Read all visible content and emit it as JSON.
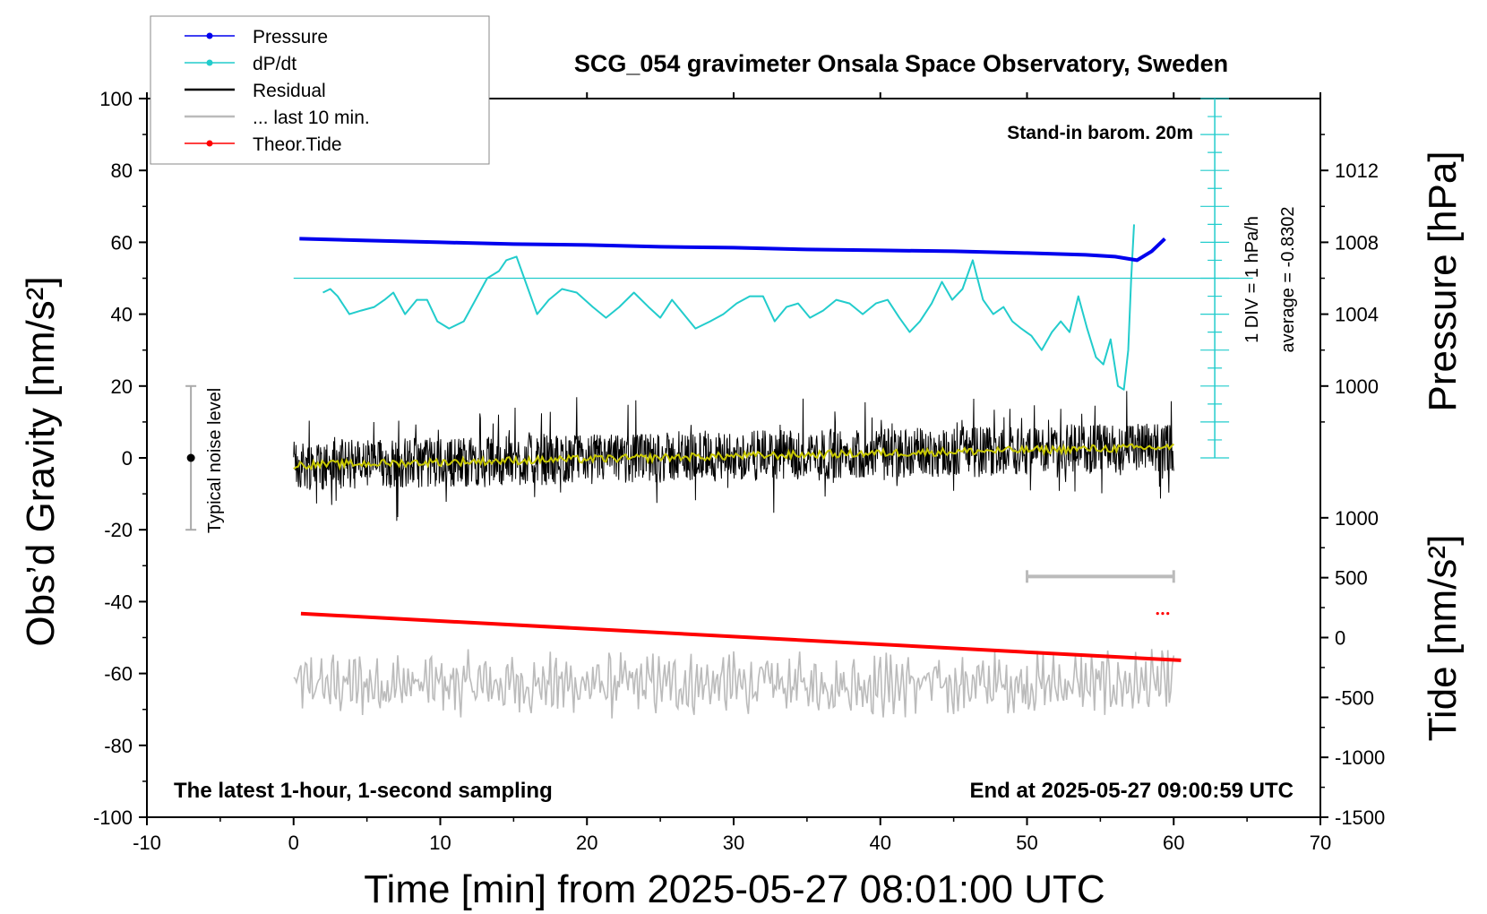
{
  "chart_data": {
    "type": "line",
    "title": "SCG_054 gravimeter Onsala Space Observatory, Sweden",
    "xlabel": "Time [min] from 2025-05-27 08:01:00 UTC",
    "ylabel_left": "Obs’d Gravity [nm/s²]",
    "ylabel_right_pressure": "Pressure [hPa]",
    "ylabel_right_tide": "Tide [nm/s²]",
    "xlim": [
      -10,
      70
    ],
    "ylim_left": [
      -100,
      100
    ],
    "x_ticks": [
      "-10",
      "0",
      "10",
      "20",
      "30",
      "40",
      "50",
      "60",
      "70"
    ],
    "y_left_ticks": [
      "100",
      "80",
      "60",
      "40",
      "20",
      "0",
      "-20",
      "-40",
      "-60",
      "-80",
      "-100"
    ],
    "pressure_ticks": [
      "1012",
      "1008",
      "1004",
      "1000"
    ],
    "tide_ticks": [
      "1000",
      "500",
      "0",
      "-500",
      "-1000",
      "-1500"
    ],
    "annotations": {
      "barometer": "Stand-in barom. 20m",
      "div_note": "1 DIV = 1 hPa/h",
      "average_note": "average = -0.8302",
      "noise_label": "Typical noise level",
      "bottom_left": "The latest 1-hour, 1-second sampling",
      "bottom_right": "End at 2025-05-27 09:00:59 UTC"
    },
    "legend": {
      "placement": "top-left",
      "entries": [
        "Pressure",
        "dP/dt",
        "Residual",
        "... last 10 min.",
        "Theor.Tide"
      ]
    },
    "colors": {
      "pressure": "#0000ee",
      "dpdt": "#22cccc",
      "residual": "#000000",
      "smoothed_residual": "#c8c800",
      "last10": "#bbbbbb",
      "tide": "#ff0000"
    },
    "series": [
      {
        "name": "Pressure",
        "unit": "hPa",
        "x": [
          0.4,
          5,
          10,
          15,
          20,
          25,
          30,
          35,
          40,
          45,
          50,
          54,
          56,
          57.5,
          58.5,
          59.4
        ],
        "values": [
          1008.2,
          1008.1,
          1008.0,
          1007.9,
          1007.85,
          1007.75,
          1007.7,
          1007.6,
          1007.55,
          1007.5,
          1007.4,
          1007.3,
          1007.2,
          1007.0,
          1007.5,
          1008.2
        ]
      },
      {
        "name": "dP/dt",
        "plotted_in": "left-axis units",
        "x": [
          2,
          2.5,
          3,
          3.8,
          4.6,
          5.5,
          6.2,
          6.8,
          7.6,
          8.4,
          9.1,
          9.8,
          10.6,
          11.6,
          12.4,
          13.2,
          14,
          14.5,
          15.2,
          15.9,
          16.6,
          17.4,
          18.3,
          19.3,
          20.4,
          21.3,
          22.2,
          23.2,
          24.2,
          25,
          25.8,
          26.6,
          27.4,
          28.4,
          29.3,
          30.2,
          31.1,
          32,
          32.8,
          33.6,
          34.4,
          35.2,
          36.1,
          37,
          37.9,
          38.8,
          39.7,
          40.5,
          41.3,
          42,
          42.7,
          43.5,
          44.2,
          44.9,
          45.6,
          46.3,
          47,
          47.7,
          48.4,
          49,
          49.6,
          50.3,
          51,
          51.7,
          52.3,
          52.9,
          53.5,
          54.1,
          54.7,
          55.2,
          55.7,
          56.2,
          56.6,
          56.9,
          57.1,
          57.3
        ],
        "values": [
          46,
          47,
          45,
          40,
          41,
          42,
          44,
          46,
          40,
          44,
          44,
          38,
          36,
          38,
          44,
          50,
          52,
          55,
          56,
          48,
          40,
          44,
          47,
          46,
          42,
          39,
          42,
          46,
          42,
          39,
          44,
          40,
          36,
          38,
          40,
          43,
          45,
          45,
          38,
          42,
          43,
          39,
          41,
          44,
          43,
          40,
          43,
          44,
          39,
          35,
          38,
          43,
          49,
          44,
          47,
          55,
          44,
          40,
          42,
          38,
          36,
          34,
          30,
          35,
          38,
          35,
          45,
          36,
          28,
          26,
          33,
          20,
          19,
          30,
          50,
          65
        ]
      },
      {
        "name": "Residual",
        "x_range": [
          0,
          60
        ],
        "description_values": {
          "mean_start": -2,
          "mean_end": 3,
          "spread": 10
        }
      },
      {
        "name": "... last 10 min.",
        "x_range": [
          0,
          60
        ],
        "offset_center": -63
      },
      {
        "name": "Theor.Tide",
        "unit": "nm/s²",
        "x": [
          0.5,
          60.5
        ],
        "values": [
          200,
          -190
        ]
      }
    ]
  }
}
